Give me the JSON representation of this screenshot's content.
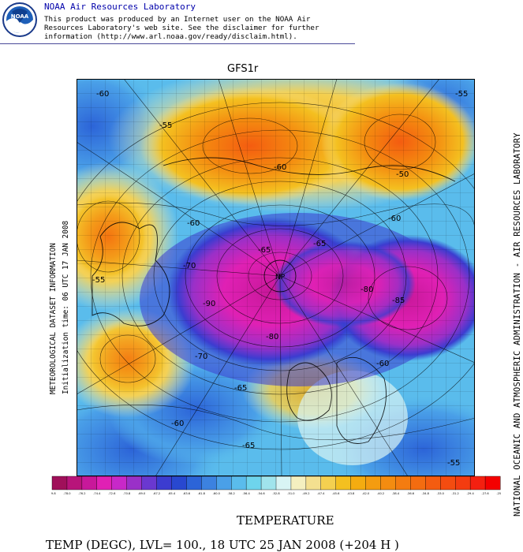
{
  "header": {
    "org": "NOAA Air Resources Laboratory",
    "logo_text": "NOAA",
    "disclaimer_lines": [
      "This product was produced by an Internet user on the NOAA Air",
      "Resources Laboratory's web site.  See the disclaimer for further",
      "information (http://www.arl.noaa.gov/ready/disclaim.html)."
    ]
  },
  "map": {
    "model": "GFS1r",
    "pole_label": "NP",
    "contour_labels": [
      "-60",
      "-55",
      "-50",
      "-60",
      "-55",
      "-60",
      "-65",
      "-70",
      "-65",
      "-60",
      "-80",
      "-85",
      "-90",
      "-80",
      "-70",
      "-65",
      "-55",
      "-60",
      "-65",
      "-60",
      "-55"
    ]
  },
  "captions": {
    "left_line1": "METEOROLOGICAL DATASET INFORMATION",
    "left_line2": "Initialization time: 06 UTC 17 JAN 2008",
    "right": "NATIONAL OCEANIC AND ATMOSPHERIC ADMINISTRATION - AIR RESOURCES LABORATORY"
  },
  "colorbar": {
    "colors": [
      "#a0105a",
      "#b8147a",
      "#c8189a",
      "#e020b4",
      "#c828c8",
      "#9a30c8",
      "#6a38d0",
      "#3c3cd0",
      "#2848d0",
      "#2c64d8",
      "#3c82e0",
      "#4aa0e8",
      "#5abcec",
      "#6ed4ec",
      "#a0e4ec",
      "#d8f4f4",
      "#f4f0c0",
      "#f4e090",
      "#f4d050",
      "#f4c020",
      "#f4ac10",
      "#f49c10",
      "#f48c10",
      "#f47c10",
      "#f46c10",
      "#f45c10",
      "#f44c10",
      "#f43c10",
      "#f42010",
      "#f40000"
    ],
    "labels": [
      "-79.8",
      "-78.0",
      "-76.2",
      "-74.4",
      "-72.6",
      "-70.8",
      "-69.0",
      "-67.2",
      "-65.4",
      "-63.6",
      "-61.8",
      "-60.0",
      "-58.2",
      "-56.4",
      "-54.6",
      "-52.8",
      "-51.0",
      "-49.2",
      "-47.4",
      "-45.6",
      "-43.8",
      "-42.0",
      "-40.2",
      "-38.4",
      "-36.6",
      "-34.8",
      "-33.0",
      "-31.2",
      "-29.4",
      "-27.6",
      "-25.8"
    ]
  },
  "footer": {
    "variable": "TEMPERATURE",
    "summary": "TEMP (DEGC),  LVL= 100., 18 UTC 25 JAN 2008 (+204 H )"
  }
}
